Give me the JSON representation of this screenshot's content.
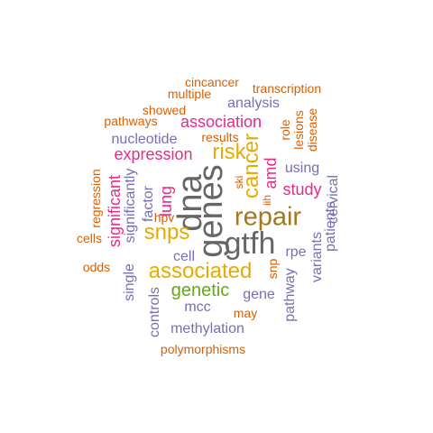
{
  "palette": {
    "orange": "#D95F02",
    "purple": "#7570B3",
    "magenta": "#E7298A",
    "green": "#66A61E",
    "gold": "#E6AB02",
    "brown": "#A6761D",
    "gray": "#666666"
  },
  "words": [
    {
      "text": "gtfh",
      "color": "#666666",
      "weight": 8
    },
    {
      "text": "genes",
      "color": "#666666",
      "weight": 8
    },
    {
      "text": "dna",
      "color": "#666666",
      "weight": 8
    },
    {
      "text": "repair",
      "color": "#A6761D",
      "weight": 7
    },
    {
      "text": "associated",
      "color": "#E6AB02",
      "weight": 6
    },
    {
      "text": "snps",
      "color": "#E6AB02",
      "weight": 6
    },
    {
      "text": "cancer",
      "color": "#E6AB02",
      "weight": 5
    },
    {
      "text": "risk",
      "color": "#E6AB02",
      "weight": 5
    },
    {
      "text": "genetic",
      "color": "#66A61E",
      "weight": 5
    },
    {
      "text": "association",
      "color": "#E7298A",
      "weight": 4
    },
    {
      "text": "expression",
      "color": "#E7298A",
      "weight": 4
    },
    {
      "text": "significant",
      "color": "#E7298A",
      "weight": 4
    },
    {
      "text": "lung",
      "color": "#E7298A",
      "weight": 4
    },
    {
      "text": "amd",
      "color": "#E7298A",
      "weight": 4
    },
    {
      "text": "study",
      "color": "#E7298A",
      "weight": 4
    },
    {
      "text": "nucleotide",
      "color": "#7570B3",
      "weight": 3
    },
    {
      "text": "methylation",
      "color": "#7570B3",
      "weight": 3
    },
    {
      "text": "gene",
      "color": "#7570B3",
      "weight": 3
    },
    {
      "text": "cell",
      "color": "#7570B3",
      "weight": 3
    },
    {
      "text": "mcc",
      "color": "#7570B3",
      "weight": 3
    },
    {
      "text": "analysis",
      "color": "#7570B3",
      "weight": 3
    },
    {
      "text": "using",
      "color": "#7570B3",
      "weight": 3
    },
    {
      "text": "rpe",
      "color": "#7570B3",
      "weight": 3
    },
    {
      "text": "cervical",
      "color": "#7570B3",
      "weight": 3
    },
    {
      "text": "patients",
      "color": "#7570B3",
      "weight": 3
    },
    {
      "text": "variants",
      "color": "#7570B3",
      "weight": 3
    },
    {
      "text": "pathway",
      "color": "#7570B3",
      "weight": 3
    },
    {
      "text": "controls",
      "color": "#7570B3",
      "weight": 3
    },
    {
      "text": "single",
      "color": "#7570B3",
      "weight": 3
    },
    {
      "text": "significantly",
      "color": "#7570B3",
      "weight": 3
    },
    {
      "text": "factor",
      "color": "#7570B3",
      "weight": 3
    },
    {
      "text": "polymorphisms",
      "color": "#D95F02",
      "weight": 2
    },
    {
      "text": "pathways",
      "color": "#D95F02",
      "weight": 2
    },
    {
      "text": "transcription",
      "color": "#D95F02",
      "weight": 2
    },
    {
      "text": "cincancer",
      "color": "#D95F02",
      "weight": 2
    },
    {
      "text": "multiple",
      "color": "#D95F02",
      "weight": 2
    },
    {
      "text": "showed",
      "color": "#D95F02",
      "weight": 2
    },
    {
      "text": "results",
      "color": "#D95F02",
      "weight": 2
    },
    {
      "text": "odds",
      "color": "#D95F02",
      "weight": 2
    },
    {
      "text": "cells",
      "color": "#D95F02",
      "weight": 2
    },
    {
      "text": "hpv",
      "color": "#D95F02",
      "weight": 2
    },
    {
      "text": "may",
      "color": "#D95F02",
      "weight": 2
    },
    {
      "text": "regression",
      "color": "#D95F02",
      "weight": 2
    },
    {
      "text": "role",
      "color": "#D95F02",
      "weight": 2
    },
    {
      "text": "lesions",
      "color": "#D95F02",
      "weight": 2
    },
    {
      "text": "disease",
      "color": "#D95F02",
      "weight": 2
    },
    {
      "text": "snp",
      "color": "#D95F02",
      "weight": 2
    },
    {
      "text": "ski",
      "color": "#D95F02",
      "weight": 2
    },
    {
      "text": "iih",
      "color": "#D95F02",
      "weight": 2
    }
  ]
}
